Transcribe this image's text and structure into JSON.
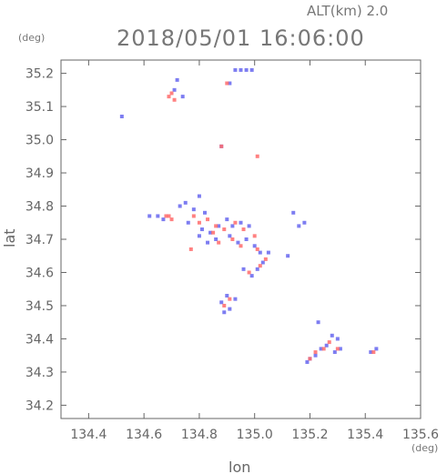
{
  "header": {
    "altitude": "ALT(km) 2.0",
    "timestamp": "2018/05/01 16:06:00",
    "y_unit": "(deg)",
    "x_unit": "(deg)"
  },
  "chart_data": {
    "type": "scatter",
    "title": "2018/05/01 16:06:00",
    "xlabel": "lon",
    "ylabel": "lat",
    "xlim": [
      134.3,
      135.6
    ],
    "ylim": [
      34.16,
      35.24
    ],
    "x_ticks": [
      "134.4",
      "134.6",
      "134.8",
      "135.0",
      "135.2",
      "135.4",
      "135.6"
    ],
    "y_ticks": [
      "34.2",
      "34.3",
      "34.4",
      "34.5",
      "34.6",
      "34.7",
      "34.8",
      "34.9",
      "35.0",
      "35.1",
      "35.2"
    ],
    "grid": false,
    "colors": {
      "positive": "#ff6b6b",
      "negative": "#6666ee",
      "axis": "#666666"
    },
    "series": [
      {
        "color": "negative",
        "points": [
          [
            134.95,
            35.21
          ],
          [
            134.93,
            35.21
          ],
          [
            134.97,
            35.21
          ],
          [
            134.99,
            35.21
          ],
          [
            134.91,
            35.17
          ],
          [
            134.72,
            35.18
          ],
          [
            134.71,
            35.15
          ],
          [
            134.74,
            35.13
          ],
          [
            134.52,
            35.07
          ],
          [
            134.88,
            34.98
          ],
          [
            134.73,
            34.8
          ],
          [
            134.75,
            34.81
          ],
          [
            134.78,
            34.79
          ],
          [
            134.8,
            34.83
          ],
          [
            134.82,
            34.78
          ],
          [
            134.65,
            34.77
          ],
          [
            134.62,
            34.77
          ],
          [
            134.67,
            34.76
          ],
          [
            134.76,
            34.75
          ],
          [
            134.81,
            34.73
          ],
          [
            134.84,
            34.72
          ],
          [
            134.87,
            34.74
          ],
          [
            134.9,
            34.76
          ],
          [
            134.92,
            34.74
          ],
          [
            134.95,
            34.75
          ],
          [
            134.98,
            34.74
          ],
          [
            134.91,
            34.71
          ],
          [
            134.94,
            34.69
          ],
          [
            134.97,
            34.7
          ],
          [
            135.0,
            34.68
          ],
          [
            135.02,
            34.66
          ],
          [
            135.05,
            34.66
          ],
          [
            135.03,
            34.63
          ],
          [
            135.01,
            34.61
          ],
          [
            134.99,
            34.59
          ],
          [
            134.96,
            34.61
          ],
          [
            134.9,
            34.53
          ],
          [
            134.88,
            34.51
          ],
          [
            134.91,
            34.49
          ],
          [
            134.89,
            34.48
          ],
          [
            134.93,
            34.52
          ],
          [
            135.16,
            34.74
          ],
          [
            135.18,
            34.75
          ],
          [
            135.14,
            34.78
          ],
          [
            135.12,
            34.65
          ],
          [
            135.28,
            34.41
          ],
          [
            135.3,
            34.4
          ],
          [
            135.26,
            34.38
          ],
          [
            135.24,
            34.37
          ],
          [
            135.29,
            34.36
          ],
          [
            135.22,
            34.35
          ],
          [
            135.2,
            34.34
          ],
          [
            135.19,
            34.33
          ],
          [
            135.31,
            34.37
          ],
          [
            135.23,
            34.45
          ],
          [
            135.44,
            34.37
          ],
          [
            135.42,
            34.36
          ],
          [
            134.86,
            34.7
          ],
          [
            134.83,
            34.69
          ],
          [
            134.8,
            34.71
          ]
        ]
      },
      {
        "color": "positive",
        "points": [
          [
            134.7,
            35.14
          ],
          [
            134.69,
            35.13
          ],
          [
            134.71,
            35.12
          ],
          [
            134.9,
            35.17
          ],
          [
            135.01,
            34.95
          ],
          [
            134.88,
            34.98
          ],
          [
            134.69,
            34.77
          ],
          [
            134.7,
            34.76
          ],
          [
            134.68,
            34.77
          ],
          [
            134.78,
            34.77
          ],
          [
            134.8,
            34.75
          ],
          [
            134.83,
            34.76
          ],
          [
            134.86,
            34.74
          ],
          [
            134.89,
            34.73
          ],
          [
            134.93,
            34.75
          ],
          [
            134.96,
            34.73
          ],
          [
            134.92,
            34.7
          ],
          [
            134.95,
            34.68
          ],
          [
            135.01,
            34.67
          ],
          [
            135.04,
            34.64
          ],
          [
            135.02,
            34.62
          ],
          [
            134.98,
            34.6
          ],
          [
            134.77,
            34.67
          ],
          [
            134.91,
            34.52
          ],
          [
            134.89,
            34.5
          ],
          [
            135.27,
            34.39
          ],
          [
            135.25,
            34.37
          ],
          [
            135.22,
            34.36
          ],
          [
            135.3,
            34.37
          ],
          [
            135.43,
            34.36
          ],
          [
            135.2,
            34.34
          ],
          [
            134.85,
            34.72
          ],
          [
            134.87,
            34.69
          ],
          [
            135.0,
            34.71
          ]
        ]
      }
    ]
  }
}
